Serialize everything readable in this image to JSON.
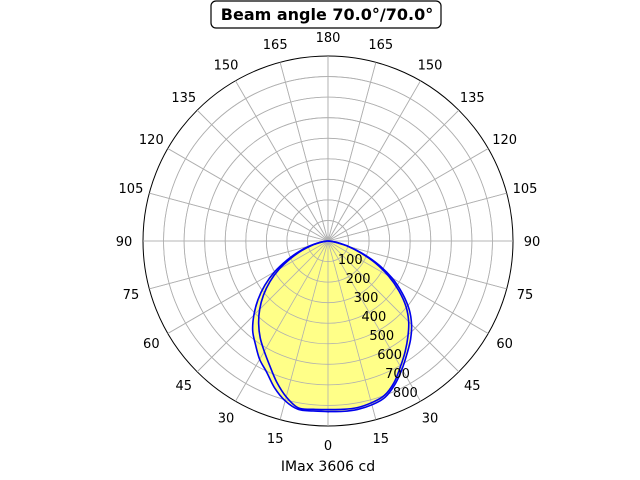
{
  "chart_data": {
    "type": "polar",
    "title": "Beam angle 70.0°/70.0°",
    "xlabel": "IMax 3606 cd",
    "r_max": 900,
    "radial_ticks": [
      100,
      200,
      300,
      400,
      500,
      600,
      700,
      800
    ],
    "angle_ticks_left": [
      "0",
      "15",
      "30",
      "45",
      "60",
      "75",
      "90",
      "105",
      "120",
      "135",
      "150",
      "165",
      "180"
    ],
    "angle_ticks_right": [
      "15",
      "30",
      "45",
      "60",
      "75",
      "90",
      "105",
      "120",
      "135",
      "150",
      "165"
    ],
    "grid": true,
    "colors": {
      "curve": "#0000ee",
      "fill": "#ffff88",
      "grid": "#b0b0b0"
    },
    "series": [
      {
        "angles": [
          0,
          5,
          10,
          15,
          20,
          25,
          30,
          35,
          40,
          45,
          50,
          55,
          60,
          65,
          70,
          75,
          80,
          85,
          90
        ],
        "left": [
          830,
          830,
          832,
          805,
          760,
          705,
          665,
          615,
          570,
          510,
          445,
          375,
          300,
          220,
          150,
          90,
          40,
          10,
          0
        ],
        "right": [
          830,
          832,
          832,
          825,
          810,
          770,
          720,
          670,
          625,
          575,
          515,
          440,
          360,
          270,
          180,
          105,
          50,
          15,
          0
        ]
      },
      {
        "angles": [
          0,
          5,
          10,
          15,
          20,
          25,
          30,
          35,
          40,
          45,
          50,
          55,
          60,
          65,
          70,
          75,
          80,
          85,
          90
        ],
        "left": [
          820,
          822,
          825,
          785,
          730,
          670,
          620,
          575,
          525,
          470,
          410,
          345,
          275,
          200,
          135,
          80,
          35,
          10,
          0
        ],
        "right": [
          820,
          822,
          823,
          815,
          800,
          760,
          705,
          655,
          605,
          555,
          495,
          420,
          340,
          255,
          170,
          100,
          45,
          12,
          0
        ]
      }
    ]
  }
}
